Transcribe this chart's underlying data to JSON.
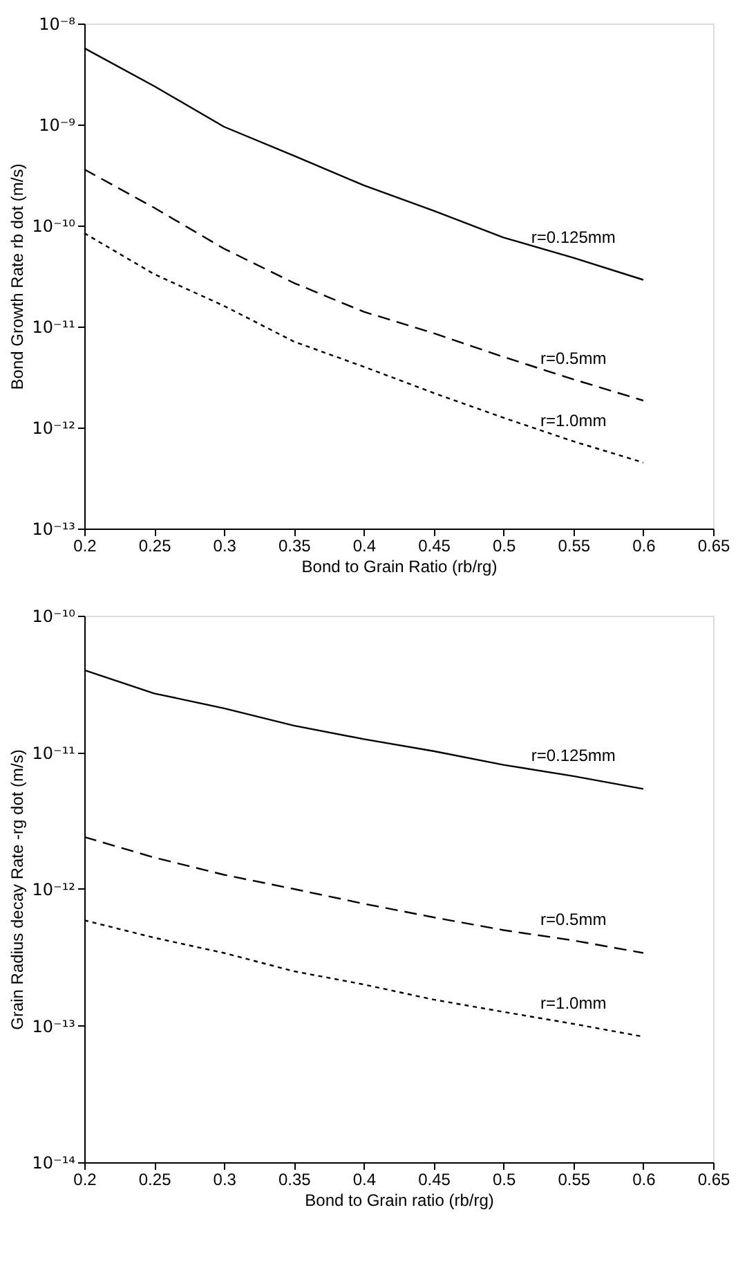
{
  "chart_data": [
    {
      "type": "line",
      "xlabel": "Bond to Grain Ratio (rb/rg)",
      "ylabel": "Bond Growth Rate rb dot (m/s)",
      "log": "y",
      "grid": false,
      "marker": "none",
      "x": [
        0.2,
        0.25,
        0.3,
        0.35,
        0.4,
        0.45,
        0.5,
        0.55,
        0.6
      ],
      "xlim": [
        0.2,
        0.65
      ],
      "xticks": [
        0.2,
        0.25,
        0.3,
        0.35,
        0.4,
        0.45,
        0.5,
        0.55,
        0.6,
        0.65
      ],
      "ylim": [
        1e-13,
        1e-08
      ],
      "yticks": [
        {
          "value": 1e-13,
          "label": "10⁻¹³"
        },
        {
          "value": 1e-12,
          "label": "10⁻¹²"
        },
        {
          "value": 1e-11,
          "label": "10⁻¹¹"
        },
        {
          "value": 1e-10,
          "label": "10⁻¹⁰"
        },
        {
          "value": 1e-09,
          "label": "10⁻⁹"
        },
        {
          "value": 1e-08,
          "label": "10⁻⁸"
        }
      ],
      "series": [
        {
          "color": "#000000",
          "line_style": "solid",
          "values": [
            5.7e-09,
            2.4e-09,
            9.5e-10,
            4.9e-10,
            2.5e-10,
            1.4e-10,
            7.6e-11,
            4.8e-11,
            2.9e-11
          ]
        },
        {
          "color": "#000000",
          "line_style": "dashed",
          "values": [
            3.6e-10,
            1.5e-10,
            5.9e-11,
            2.7e-11,
            1.4e-11,
            8.6e-12,
            5e-12,
            3e-12,
            1.85e-12
          ]
        },
        {
          "color": "#000000",
          "line_style": "dotted",
          "values": [
            8.4e-11,
            3.3e-11,
            1.6e-11,
            7.1e-12,
            4e-12,
            2.2e-12,
            1.25e-12,
            7.3e-13,
            4.5e-13
          ]
        }
      ],
      "annotations": [
        "r=0.125mm",
        "r=0.5mm",
        "r=1.0mm"
      ]
    },
    {
      "type": "line",
      "xlabel": "Bond to Grain ratio (rb/rg)",
      "ylabel": "Grain Radius decay Rate -rg dot (m/s)",
      "log": "y",
      "grid": false,
      "marker": "none",
      "x": [
        0.2,
        0.25,
        0.3,
        0.35,
        0.4,
        0.45,
        0.5,
        0.55,
        0.6
      ],
      "xlim": [
        0.2,
        0.65
      ],
      "xticks": [
        0.2,
        0.25,
        0.3,
        0.35,
        0.4,
        0.45,
        0.5,
        0.55,
        0.6,
        0.65
      ],
      "ylim": [
        1e-14,
        1e-10
      ],
      "yticks": [
        {
          "value": 1e-14,
          "label": "10⁻¹⁴"
        },
        {
          "value": 1e-13,
          "label": "10⁻¹³"
        },
        {
          "value": 1e-12,
          "label": "10⁻¹²"
        },
        {
          "value": 1e-11,
          "label": "10⁻¹¹"
        },
        {
          "value": 1e-10,
          "label": "10⁻¹⁰"
        }
      ],
      "series": [
        {
          "color": "#000000",
          "line_style": "solid",
          "values": [
            4e-11,
            2.7e-11,
            2.1e-11,
            1.57e-11,
            1.25e-11,
            1.02e-11,
            8.1e-12,
            6.7e-12,
            5.4e-12
          ]
        },
        {
          "color": "#000000",
          "line_style": "dashed",
          "values": [
            2.4e-12,
            1.7e-12,
            1.27e-12,
            1e-12,
            7.8e-13,
            6.2e-13,
            5e-13,
            4.2e-13,
            3.4e-13
          ]
        },
        {
          "color": "#000000",
          "line_style": "dotted",
          "values": [
            5.9e-13,
            4.4e-13,
            3.4e-13,
            2.5e-13,
            2e-13,
            1.55e-13,
            1.26e-13,
            1.03e-13,
            8.3e-14
          ]
        }
      ],
      "annotations": [
        "r=0.125mm",
        "r=0.5mm",
        "r=1.0mm"
      ]
    }
  ]
}
